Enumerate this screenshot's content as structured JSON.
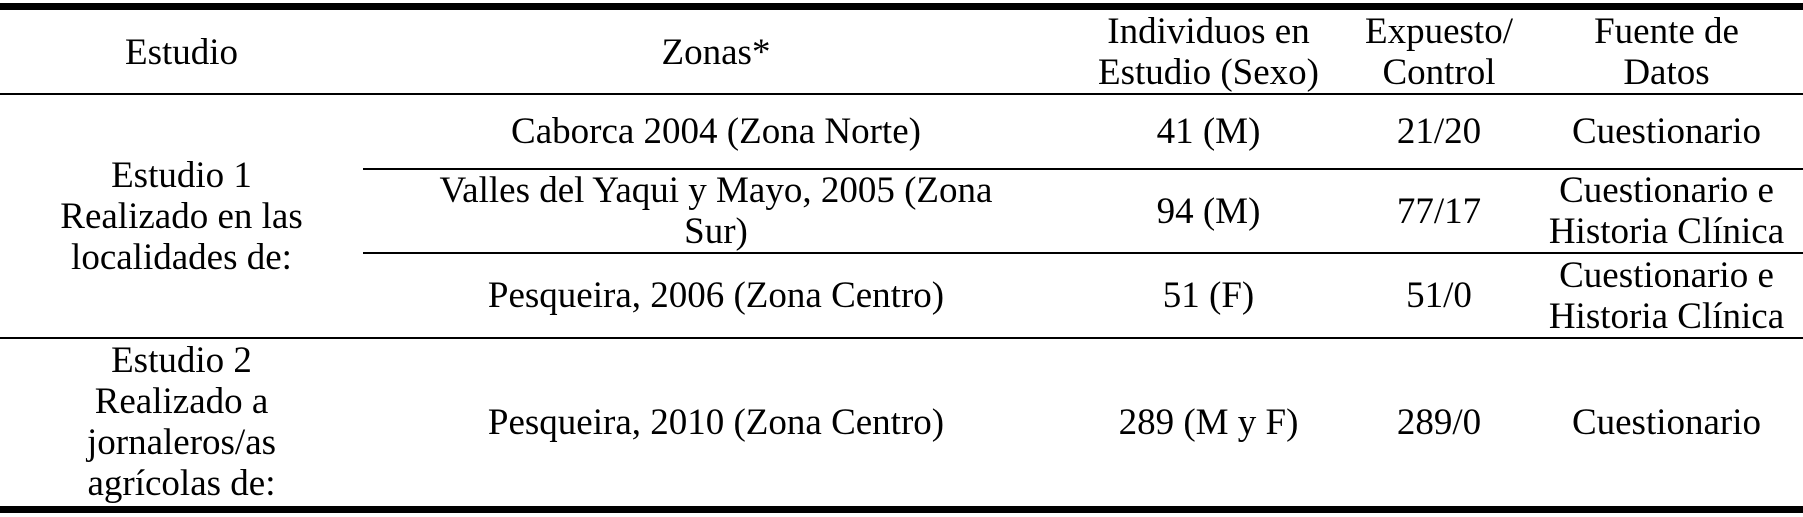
{
  "table": {
    "header": [
      "Estudio",
      "Zonas*",
      "Individuos en\nEstudio (Sexo)",
      "Expuesto/\nControl",
      "Fuente de\nDatos"
    ],
    "studies": [
      {
        "label": "Estudio 1\nRealizado en las\nlocalidades de:",
        "rows": [
          [
            "Caborca 2004 (Zona Norte)",
            "41 (M)",
            "21/20",
            "Cuestionario"
          ],
          [
            "Valles del Yaqui y Mayo, 2005 (Zona\nSur)",
            "94 (M)",
            "77/17",
            "Cuestionario e\nHistoria Clínica"
          ],
          [
            "Pesqueira, 2006 (Zona Centro)",
            "51 (F)",
            "51/0",
            "Cuestionario e\nHistoria Clínica"
          ]
        ]
      },
      {
        "label": "Estudio 2\nRealizado a\njornaleros/as\nagrícolas de:",
        "rows": [
          [
            "Pesqueira, 2010 (Zona Centro)",
            "289 (M y F)",
            "289/0",
            "Cuestionario"
          ]
        ]
      }
    ]
  }
}
